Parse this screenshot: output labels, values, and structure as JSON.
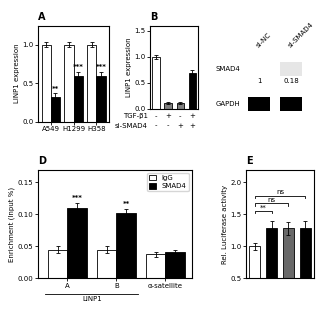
{
  "chart_data": [
    {
      "type": "bar",
      "title": "A",
      "categories": [
        "A549",
        "H1299",
        "H358"
      ],
      "series": [
        {
          "color": "white",
          "values": [
            1.0,
            1.0,
            1.0
          ],
          "error": [
            0.03,
            0.03,
            0.03
          ]
        },
        {
          "color": "black",
          "values": [
            0.32,
            0.6,
            0.6
          ],
          "error": [
            0.05,
            0.05,
            0.05
          ],
          "annotations": [
            "**",
            "***",
            "***"
          ]
        }
      ],
      "ylabel": "LINP1 expression",
      "ylim": [
        0,
        1.25
      ],
      "yticks": [
        {
          "value": 0,
          "label": "0.0"
        },
        0.5,
        {
          "value": 1.0,
          "label": "1.0"
        }
      ]
    },
    {
      "type": "bar",
      "title": "B",
      "values": [
        1.0,
        0.12,
        0.12,
        0.68
      ],
      "colors": [
        "white",
        "gray",
        "gray",
        "black"
      ],
      "error": [
        0.04,
        0.02,
        0.02,
        0.06
      ],
      "category_rows": [
        {
          "label": "TGF-β1",
          "values": [
            "-",
            "+",
            "-",
            "+"
          ]
        },
        {
          "label": "si-SMAD4",
          "values": [
            "-",
            "-",
            "+",
            "+"
          ]
        }
      ],
      "ylabel": "LINP1 expression",
      "ylim": [
        0,
        1.6
      ],
      "yticks": [
        {
          "value": 0,
          "label": "0.0"
        },
        0.5,
        {
          "value": 1.0,
          "label": "1.0"
        },
        1.5
      ],
      "tick_labels": "y"
    },
    {
      "type": "blot",
      "categories": [
        "si-NC",
        "si-SMAD4"
      ],
      "series": [
        {
          "name": "SMAD4",
          "values": [
            1,
            0.18
          ]
        },
        {
          "name": "GAPDH"
        }
      ],
      "data_labels": true
    },
    {
      "type": "bar",
      "title": "D",
      "categories": [
        "A",
        "B",
        "α-satellite"
      ],
      "category_groups": [
        {
          "label": "LINP1",
          "categories": [
            "A",
            "B"
          ]
        }
      ],
      "series": [
        {
          "name": "IgG",
          "color": "white",
          "values": [
            0.045,
            0.045,
            0.038
          ],
          "error": [
            0.005,
            0.005,
            0.004
          ]
        },
        {
          "name": "SMAD4",
          "color": "black",
          "values": [
            0.11,
            0.102,
            0.042
          ],
          "error": [
            0.008,
            0.007,
            0.003
          ],
          "annotations": [
            "***",
            "**",
            null
          ]
        }
      ],
      "ylabel": "Enrichment (Input %)",
      "ylim": [
        0,
        0.17
      ],
      "yticks": [
        {
          "value": 0,
          "label": "0.00"
        },
        0.05,
        {
          "value": 0.1,
          "label": "0.10"
        },
        0.15
      ],
      "legend": "upper right"
    },
    {
      "type": "bar",
      "title": "E",
      "values": [
        1.0,
        1.28,
        1.28,
        1.28
      ],
      "colors": [
        "white",
        "black",
        "dimgray",
        "black"
      ],
      "error": [
        0.05,
        0.12,
        0.1,
        0.12
      ],
      "comparisons": [
        {
          "bars": [
            0,
            1
          ],
          "label": "**"
        },
        {
          "bars": [
            0,
            2
          ],
          "label": "ns"
        },
        {
          "bars": [
            0,
            3
          ],
          "label": "ns"
        }
      ],
      "ylabel": "Rel. Luciferase activity",
      "ylim": [
        0.5,
        2.2
      ],
      "yticks": [
        0.5,
        {
          "value": 1.0,
          "label": "1.0"
        },
        1.5,
        {
          "value": 2.0,
          "label": "2.0"
        }
      ],
      "tick_labels": "y"
    }
  ]
}
